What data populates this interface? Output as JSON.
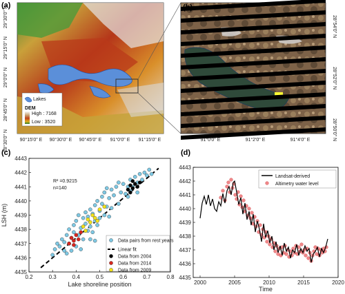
{
  "panels": {
    "a": {
      "label": "(a)",
      "lat_labels": [
        "29°30'0\" N",
        "29°15'0\" N",
        "29°0'0\" N",
        "28°45'0\" N",
        "28°30'0\" N"
      ],
      "lon_labels": [
        "90°15'0\" E",
        "90°30'0\" E",
        "90°45'0\" E",
        "91°0'0\" E",
        "91°15'0\" E"
      ],
      "legend": {
        "lakes": "Lakes",
        "dem_title": "DEM",
        "dem_high": "High : 7168",
        "dem_low": "Low : 3520"
      }
    },
    "b": {
      "label": "(b)",
      "lat_labels": [
        "28°54'0\" N",
        "28°52'0\" N",
        "28°50'0\" N"
      ],
      "lon_labels": [
        "91°0'0\" E",
        "91°2'0\" E",
        "91°4'0\" E"
      ]
    },
    "c": {
      "label": "(c)"
    },
    "d": {
      "label": "(d)"
    }
  },
  "colors": {
    "dem_high": "#f2f2f2",
    "dem_mid": "#c0421a",
    "dem_low": "#2f7d2a",
    "lake": "#5b8fd9",
    "satellite": "#8a6d4e",
    "rest_years": "#7ec8e3",
    "fit": "#000000",
    "y2004": "#000000",
    "y2014": "#d7261e",
    "y2009": "#f2e21a",
    "landsat": "#000000",
    "altimetry": "#e8474a"
  },
  "chart_data": [
    {
      "type": "scatter",
      "panel": "c",
      "xlabel": "Lake shoreline position",
      "ylabel": "LSH  (m)",
      "xlim": [
        0.2,
        0.8
      ],
      "ylim": [
        4435,
        4443
      ],
      "xticks": [
        "0.2",
        "0.3",
        "0.4",
        "0.5",
        "0.6",
        "0.7",
        "0.8"
      ],
      "yticks": [
        "4435",
        "4436",
        "4437",
        "4438",
        "4439",
        "4440",
        "4441",
        "4442",
        "4443"
      ],
      "annotations": [
        "R² =0.9215",
        "n=140"
      ],
      "legend": [
        "Data pairs from rest years",
        "Linear fit",
        "Data from 2004",
        "Data from 2014",
        "Data from 2009"
      ],
      "fit": {
        "x": [
          0.25,
          0.75
        ],
        "y": [
          4435.3,
          4442.3
        ]
      },
      "series": [
        {
          "name": "Data pairs from rest years",
          "points": [
            [
              0.3,
              4436.2
            ],
            [
              0.31,
              4436.6
            ],
            [
              0.32,
              4437.0
            ],
            [
              0.33,
              4436.8
            ],
            [
              0.34,
              4437.3
            ],
            [
              0.35,
              4437.1
            ],
            [
              0.35,
              4436.5
            ],
            [
              0.36,
              4437.6
            ],
            [
              0.37,
              4437.0
            ],
            [
              0.37,
              4438.0
            ],
            [
              0.38,
              4437.4
            ],
            [
              0.39,
              4438.3
            ],
            [
              0.39,
              4437.8
            ],
            [
              0.4,
              4436.8
            ],
            [
              0.4,
              4438.6
            ],
            [
              0.41,
              4437.6
            ],
            [
              0.41,
              4439.0
            ],
            [
              0.42,
              4438.1
            ],
            [
              0.42,
              4436.6
            ],
            [
              0.43,
              4438.8
            ],
            [
              0.43,
              4437.3
            ],
            [
              0.44,
              4438.4
            ],
            [
              0.44,
              4439.2
            ],
            [
              0.45,
              4437.9
            ],
            [
              0.45,
              4438.9
            ],
            [
              0.46,
              4439.4
            ],
            [
              0.46,
              4438.2
            ],
            [
              0.47,
              4437.8
            ],
            [
              0.47,
              4439.1
            ],
            [
              0.48,
              4438.6
            ],
            [
              0.48,
              4439.7
            ],
            [
              0.49,
              4438.3
            ],
            [
              0.49,
              4440.0
            ],
            [
              0.5,
              4439.3
            ],
            [
              0.5,
              4438.8
            ],
            [
              0.51,
              4439.8
            ],
            [
              0.51,
              4440.3
            ],
            [
              0.52,
              4439.0
            ],
            [
              0.52,
              4440.6
            ],
            [
              0.53,
              4439.6
            ],
            [
              0.53,
              4440.9
            ],
            [
              0.54,
              4440.2
            ],
            [
              0.55,
              4439.5
            ],
            [
              0.55,
              4440.8
            ],
            [
              0.56,
              4440.4
            ],
            [
              0.57,
              4441.0
            ],
            [
              0.58,
              4439.8
            ],
            [
              0.59,
              4440.6
            ],
            [
              0.6,
              4441.2
            ],
            [
              0.61,
              4440.5
            ],
            [
              0.62,
              4441.0
            ],
            [
              0.63,
              4440.7
            ],
            [
              0.63,
              4441.5
            ],
            [
              0.64,
              4441.0
            ],
            [
              0.65,
              4441.7
            ],
            [
              0.66,
              4441.3
            ],
            [
              0.67,
              4441.9
            ],
            [
              0.68,
              4441.5
            ],
            [
              0.69,
              4442.0
            ],
            [
              0.7,
              4441.8
            ],
            [
              0.71,
              4442.2
            ],
            [
              0.72,
              4441.9
            ],
            [
              0.36,
              4436.3
            ],
            [
              0.38,
              4436.5
            ],
            [
              0.46,
              4437.3
            ],
            [
              0.54,
              4438.9
            ],
            [
              0.58,
              4441.3
            ],
            [
              0.62,
              4440.3
            ],
            [
              0.66,
              4440.6
            ],
            [
              0.48,
              4437.2
            ]
          ]
        },
        {
          "name": "Data from 2004",
          "points": [
            [
              0.62,
              4440.8
            ],
            [
              0.63,
              4441.1
            ],
            [
              0.64,
              4440.9
            ],
            [
              0.65,
              4441.2
            ],
            [
              0.66,
              4441.0
            ],
            [
              0.64,
              4441.4
            ],
            [
              0.67,
              4441.3
            ],
            [
              0.63,
              4440.6
            ]
          ]
        },
        {
          "name": "Data from 2014",
          "points": [
            [
              0.37,
              4437.0
            ],
            [
              0.38,
              4437.4
            ],
            [
              0.39,
              4437.2
            ],
            [
              0.4,
              4437.6
            ],
            [
              0.41,
              4437.3
            ],
            [
              0.42,
              4437.8
            ],
            [
              0.39,
              4436.9
            ]
          ]
        },
        {
          "name": "Data from 2009",
          "points": [
            [
              0.43,
              4438.2
            ],
            [
              0.45,
              4438.7
            ],
            [
              0.46,
              4438.5
            ],
            [
              0.47,
              4439.0
            ],
            [
              0.48,
              4438.8
            ],
            [
              0.5,
              4439.4
            ],
            [
              0.52,
              4439.6
            ],
            [
              0.44,
              4437.9
            ],
            [
              0.49,
              4438.6
            ]
          ]
        }
      ]
    },
    {
      "type": "line",
      "panel": "d",
      "xlabel": "Time",
      "ylabel": "",
      "xlim": [
        1999,
        2020
      ],
      "ylim": [
        4435,
        4443
      ],
      "xticks": [
        "2000",
        "2005",
        "2010",
        "2015",
        "2020"
      ],
      "yticks": [
        "4435",
        "4436",
        "4437",
        "4438",
        "4439",
        "4440",
        "4441",
        "4442",
        "4443"
      ],
      "legend": [
        "Landsat-derived",
        "Altimetry water level"
      ],
      "series": [
        {
          "name": "Landsat-derived",
          "kind": "line",
          "x": [
            2000.0,
            2000.3,
            2000.6,
            2000.9,
            2001.2,
            2001.5,
            2001.8,
            2002.1,
            2002.4,
            2002.7,
            2003.0,
            2003.3,
            2003.6,
            2003.9,
            2004.2,
            2004.5,
            2004.8,
            2005.0,
            2005.3,
            2005.6,
            2005.9,
            2006.2,
            2006.5,
            2006.8,
            2007.1,
            2007.4,
            2007.7,
            2008.0,
            2008.3,
            2008.6,
            2008.9,
            2009.2,
            2009.5,
            2009.8,
            2010.1,
            2010.4,
            2010.7,
            2011.0,
            2011.3,
            2011.6,
            2011.9,
            2012.2,
            2012.5,
            2012.8,
            2013.1,
            2013.4,
            2013.7,
            2014.0,
            2014.3,
            2014.6,
            2014.9,
            2015.2,
            2015.5,
            2015.8,
            2016.1,
            2016.4,
            2016.7,
            2017.0,
            2017.3,
            2017.6,
            2017.9,
            2018.2,
            2018.5
          ],
          "y": [
            4439.3,
            4440.4,
            4440.9,
            4440.3,
            4441.0,
            4440.2,
            4440.7,
            4440.0,
            4439.8,
            4440.5,
            4440.2,
            4441.1,
            4440.4,
            4441.3,
            4441.6,
            4441.0,
            4441.9,
            4442.0,
            4441.2,
            4440.3,
            4440.8,
            4439.6,
            4440.4,
            4439.2,
            4439.8,
            4438.8,
            4439.6,
            4438.3,
            4439.1,
            4438.5,
            4437.6,
            4438.9,
            4437.9,
            4438.4,
            4437.5,
            4438.0,
            4437.0,
            4437.6,
            4436.8,
            4437.3,
            4436.6,
            4437.5,
            4436.9,
            4437.2,
            4436.4,
            4437.0,
            4436.8,
            4437.4,
            4436.6,
            4437.1,
            4436.8,
            4437.3,
            4436.9,
            4437.1,
            4436.1,
            4436.7,
            4436.9,
            4437.2,
            4436.5,
            4437.1,
            4436.8,
            4437.2,
            4437.8
          ]
        },
        {
          "name": "Altimetry water level",
          "kind": "scatter",
          "x": [
            2003.0,
            2003.3,
            2003.6,
            2003.9,
            2004.1,
            2004.3,
            2004.5,
            2004.7,
            2004.9,
            2005.1,
            2005.3,
            2005.5,
            2005.7,
            2005.9,
            2006.1,
            2006.3,
            2006.5,
            2006.7,
            2006.9,
            2007.1,
            2007.3,
            2007.5,
            2007.7,
            2007.9,
            2008.1,
            2008.3,
            2008.5,
            2008.7,
            2008.9,
            2009.1,
            2009.3,
            2009.5,
            2009.7,
            2009.9,
            2010.1,
            2010.3,
            2010.5,
            2010.7,
            2010.9,
            2011.1,
            2011.3,
            2011.5,
            2011.7,
            2011.9,
            2012.1,
            2012.3,
            2012.5,
            2012.7,
            2012.9,
            2013.1,
            2013.3,
            2013.5,
            2013.7,
            2013.9,
            2014.1,
            2014.3,
            2014.5,
            2014.7,
            2014.9,
            2015.1,
            2015.3,
            2015.5,
            2015.7,
            2015.9,
            2016.1,
            2016.3,
            2016.5,
            2016.7,
            2016.9,
            2017.1,
            2017.3,
            2017.5,
            2017.7,
            2017.9,
            2018.1,
            2018.3
          ],
          "y": [
            4440.8,
            4441.3,
            4440.6,
            4441.6,
            4441.9,
            4441.2,
            4442.1,
            4441.5,
            4441.8,
            4441.0,
            4440.7,
            4441.2,
            4440.3,
            4440.9,
            4440.1,
            4440.6,
            4439.8,
            4440.2,
            4439.5,
            4440.0,
            4439.3,
            4439.7,
            4438.9,
            4439.4,
            4438.7,
            4439.1,
            4438.3,
            4438.8,
            4438.1,
            4438.5,
            4437.9,
            4438.3,
            4437.6,
            4438.0,
            4437.4,
            4437.8,
            4437.2,
            4437.5,
            4436.9,
            4437.3,
            4436.7,
            4437.1,
            4436.6,
            4437.2,
            4436.8,
            4437.3,
            4436.7,
            4437.0,
            4436.5,
            4436.9,
            4436.6,
            4437.1,
            4436.8,
            4437.3,
            4436.7,
            4437.2,
            4436.9,
            4437.4,
            4436.8,
            4437.0,
            4436.6,
            4437.1,
            4436.4,
            4436.8,
            4436.2,
            4436.6,
            4436.9,
            4437.2,
            4436.7,
            4437.1,
            4436.6,
            4437.0,
            4436.8,
            4437.1,
            4436.9,
            4437.2
          ]
        }
      ]
    }
  ]
}
